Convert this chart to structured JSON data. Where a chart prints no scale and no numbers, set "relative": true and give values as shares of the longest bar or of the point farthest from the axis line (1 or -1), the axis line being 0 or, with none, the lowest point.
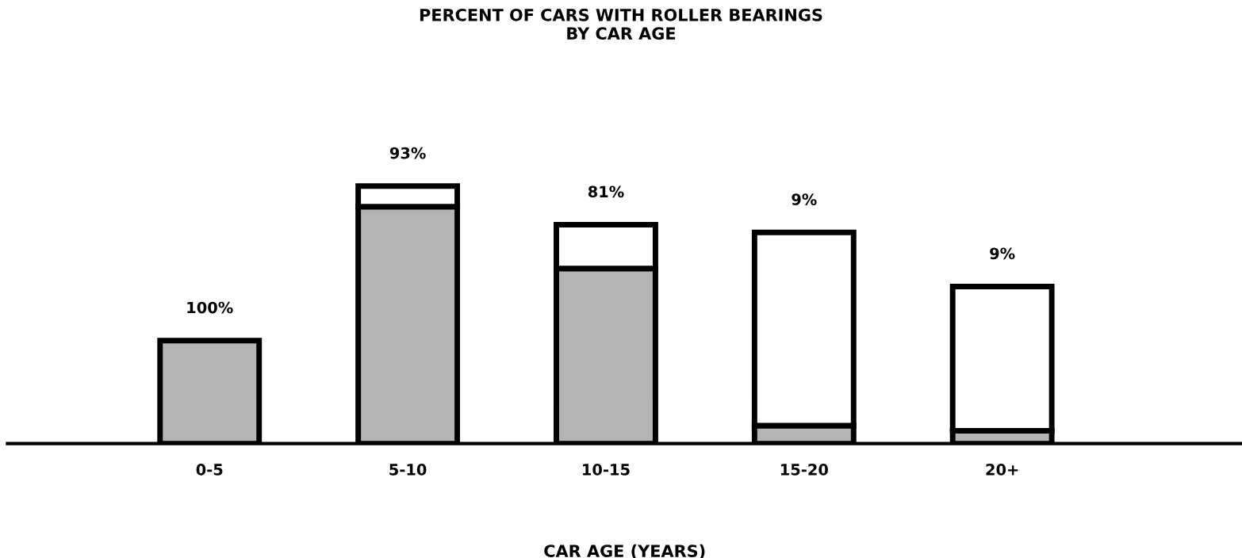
{
  "chart_data": {
    "type": "bar",
    "title": "PERCENT OF CARS WITH ROLLER BEARINGS\nBY CAR AGE",
    "xlabel": "CAR AGE (YEARS)",
    "categories": [
      "0-5",
      "5-10",
      "10-15",
      "15-20",
      "20+"
    ],
    "relative": true,
    "stacked": true,
    "series": [
      {
        "color": "#b4b4b4",
        "values": [
          0.4,
          0.92,
          0.68,
          0.07,
          0.05
        ]
      },
      {
        "color": "#ffffff",
        "values": [
          null,
          0.08,
          0.17,
          0.75,
          0.56
        ]
      }
    ],
    "annotations": [
      {
        "text": "100%",
        "x": "0-5",
        "y": 0.4
      },
      {
        "text": "93%",
        "x": "5-10",
        "y": 1.0
      },
      {
        "text": "81%",
        "x": "10-15",
        "y": 0.85
      },
      {
        "text": "9%",
        "x": "15-20",
        "y": 0.82
      },
      {
        "text": "9%",
        "x": "20+",
        "y": 0.61
      }
    ],
    "grid": false,
    "legend": false
  }
}
